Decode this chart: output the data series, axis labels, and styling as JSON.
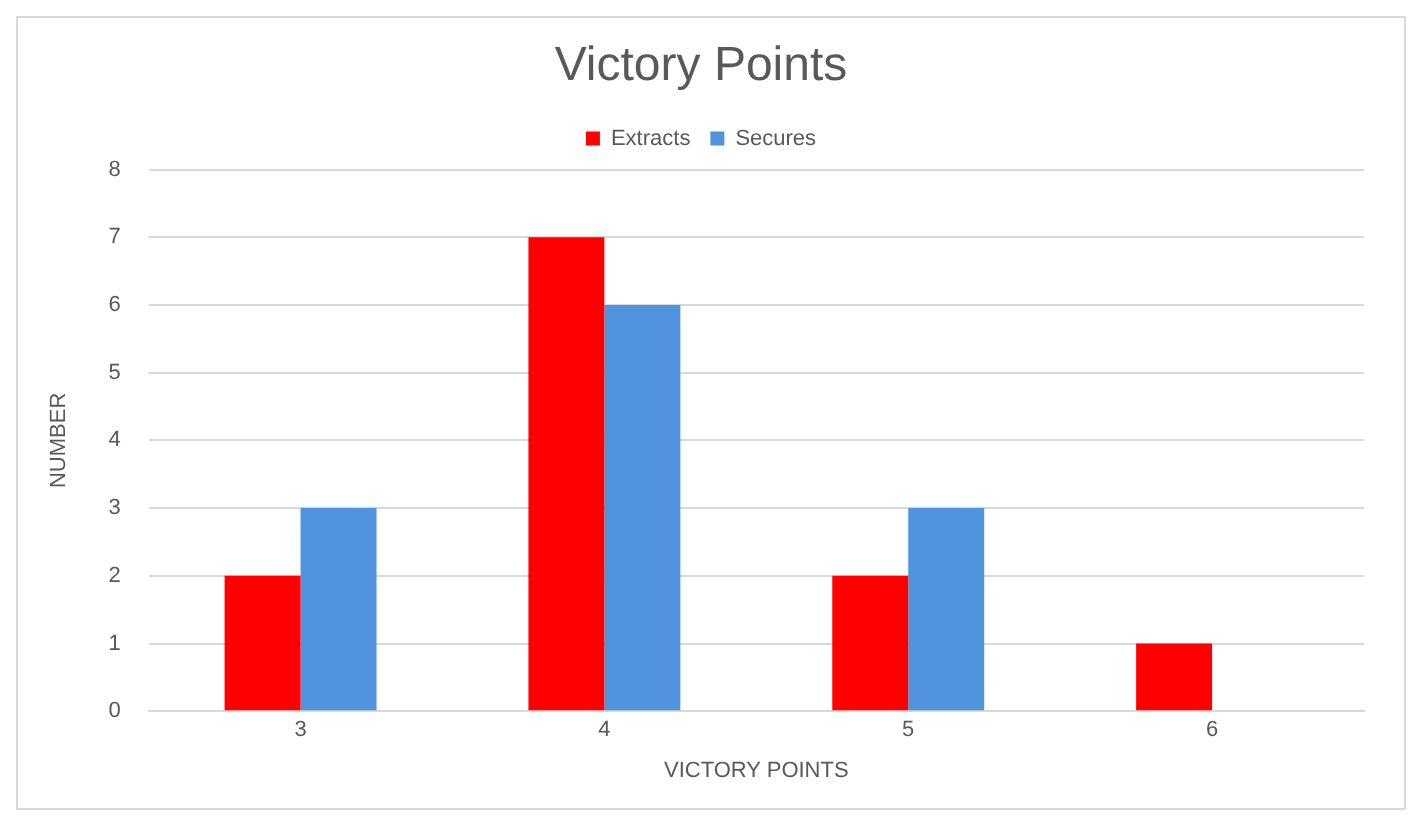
{
  "chart_data": {
    "type": "bar",
    "title": "Victory Points",
    "xlabel": "VICTORY POINTS",
    "ylabel": "NUMBER",
    "categories": [
      "3",
      "4",
      "5",
      "6"
    ],
    "series": [
      {
        "name": "Extracts",
        "color": "#ff0000",
        "values": [
          2,
          7,
          2,
          1
        ]
      },
      {
        "name": "Secures",
        "color": "#4f94dc",
        "values": [
          3,
          6,
          3,
          null
        ]
      }
    ],
    "ylim": [
      0,
      8
    ],
    "yticks": [
      0,
      1,
      2,
      3,
      4,
      5,
      6,
      7,
      8
    ],
    "grid": "y",
    "legend": "top"
  }
}
